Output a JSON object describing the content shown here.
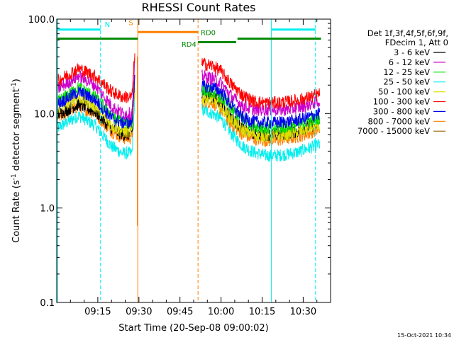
{
  "chart_data": {
    "type": "line",
    "title": "RHESSI Count Rates",
    "xlabel": "Start Time (20-Sep-08 09:00:02)",
    "ylabel_main": "Count Rate (s",
    "ylabel_sup1": "-1",
    "ylabel_mid": " detector segment",
    "ylabel_sup2": "-1",
    "ylabel_end": ")",
    "yscale": "log",
    "ylim": [
      0.1,
      100.0
    ],
    "xlim_minutes": [
      0,
      100
    ],
    "x_ticks": [
      {
        "label": "09:15",
        "t": 15
      },
      {
        "label": "09:30",
        "t": 30
      },
      {
        "label": "09:45",
        "t": 45
      },
      {
        "label": "10:00",
        "t": 60
      },
      {
        "label": "10:15",
        "t": 75
      },
      {
        "label": "10:30",
        "t": 90
      }
    ],
    "y_ticks": [
      {
        "label": "100.0",
        "v": 100
      },
      {
        "label": "10.0",
        "v": 10
      },
      {
        "label": "1.0",
        "v": 1
      },
      {
        "label": "0.1",
        "v": 0.1
      }
    ],
    "legend_header": [
      "Det 1f,3f,4f,5f,6f,9f,",
      "FDecim 1, Att 0"
    ],
    "series": [
      {
        "name": "3 - 6 keV",
        "color": "#000000",
        "segments": [
          {
            "t": [
              0,
              8,
              14,
              20,
              24,
              27.5,
              28.5
            ],
            "v": [
              9.8,
              12.5,
              10.5,
              7.0,
              6.0,
              6.0,
              25.0
            ]
          },
          {
            "t": [
              53,
              57,
              60,
              64,
              68,
              72,
              76,
              80,
              84,
              88,
              92,
              96
            ],
            "v": [
              15.5,
              15.0,
              12.8,
              9.0,
              6.8,
              6.2,
              6.0,
              6.0,
              6.2,
              6.5,
              7.3,
              8.0
            ]
          }
        ]
      },
      {
        "name": "6 - 12 keV",
        "color": "#cc00cc",
        "segments": [
          {
            "t": [
              0,
              8,
              14,
              20,
              24,
              27.5,
              28.5
            ],
            "v": [
              18.0,
              25.0,
              20.0,
              12.0,
              10.0,
              10.0,
              34.0
            ]
          },
          {
            "t": [
              53,
              57,
              60,
              64,
              68,
              72,
              76,
              80,
              84,
              88,
              92,
              96
            ],
            "v": [
              25.0,
              23.5,
              21.0,
              15.0,
              12.0,
              11.0,
              11.0,
              11.0,
              11.0,
              11.5,
              12.5,
              13.5
            ]
          }
        ]
      },
      {
        "name": "12 - 25 keV",
        "color": "#00dd00",
        "segments": [
          {
            "t": [
              0,
              8,
              14,
              20,
              24,
              27.5,
              28.5
            ],
            "v": [
              13.0,
              19.0,
              15.0,
              9.5,
              8.0,
              8.0,
              27.0
            ]
          },
          {
            "t": [
              53,
              57,
              60,
              64,
              68,
              72,
              76,
              80,
              84,
              88,
              92,
              96
            ],
            "v": [
              18.0,
              17.0,
              15.0,
              11.0,
              8.5,
              7.5,
              7.0,
              7.0,
              7.2,
              7.6,
              8.3,
              9.0
            ]
          }
        ]
      },
      {
        "name": "25 - 50 keV",
        "color": "#00eeee",
        "segments": [
          {
            "t": [
              0,
              8,
              14,
              20,
              24,
              27.5,
              28.5
            ],
            "v": [
              7.0,
              9.5,
              7.5,
              4.5,
              3.8,
              3.8,
              15.0
            ]
          },
          {
            "t": [
              53,
              57,
              60,
              64,
              68,
              72,
              76,
              80,
              84,
              88,
              92,
              96
            ],
            "v": [
              11.0,
              10.0,
              8.8,
              6.0,
              4.5,
              3.9,
              3.6,
              3.6,
              3.7,
              3.9,
              4.3,
              4.7
            ]
          }
        ]
      },
      {
        "name": "50 - 100 keV",
        "color": "#dddd00",
        "segments": [
          {
            "t": [
              0,
              8,
              14,
              20,
              24,
              27.5,
              28.5
            ],
            "v": [
              11.0,
              15.0,
              12.0,
              7.5,
              6.5,
              6.5,
              22.0
            ]
          },
          {
            "t": [
              53,
              57,
              60,
              64,
              68,
              72,
              76,
              80,
              84,
              88,
              92,
              96
            ],
            "v": [
              14.5,
              14.0,
              12.0,
              8.5,
              6.6,
              6.0,
              5.8,
              5.8,
              6.0,
              6.3,
              6.9,
              7.5
            ]
          }
        ]
      },
      {
        "name": "100 - 300 keV",
        "color": "#ff0000",
        "segments": [
          {
            "t": [
              0,
              8,
              14,
              20,
              24,
              27.5,
              28.5
            ],
            "v": [
              22.0,
              30.0,
              25.0,
              17.0,
              15.0,
              15.0,
              45.0
            ]
          },
          {
            "t": [
              53,
              57,
              60,
              64,
              68,
              72,
              76,
              80,
              84,
              88,
              92,
              96
            ],
            "v": [
              34.0,
              32.0,
              28.0,
              20.0,
              15.5,
              13.5,
              13.0,
              13.0,
              13.3,
              13.8,
              14.8,
              16.0
            ]
          }
        ]
      },
      {
        "name": "300 - 800 keV",
        "color": "#0000ee",
        "segments": [
          {
            "t": [
              0,
              8,
              14,
              20,
              24,
              27.5,
              28.5
            ],
            "v": [
              12.5,
              17.0,
              14.0,
              9.0,
              8.0,
              8.0,
              26.0
            ]
          },
          {
            "t": [
              53,
              57,
              60,
              64,
              68,
              72,
              76,
              80,
              84,
              88,
              92,
              96
            ],
            "v": [
              19.5,
              19.0,
              17.0,
              12.0,
              9.0,
              8.2,
              8.0,
              8.0,
              8.2,
              8.5,
              9.2,
              10.0
            ]
          }
        ]
      },
      {
        "name": "800 - 7000 keV",
        "color": "#ff8000",
        "segments": [
          {
            "t": [
              0,
              8,
              14,
              20,
              24,
              27.5,
              28.5
            ],
            "v": [
              9.0,
              12.0,
              10.0,
              6.5,
              5.5,
              5.5,
              18.0
            ]
          },
          {
            "t": [
              53,
              57,
              60,
              64,
              68,
              72,
              76,
              80,
              84,
              88,
              92,
              96
            ],
            "v": [
              13.5,
              13.0,
              11.0,
              7.5,
              6.0,
              5.4,
              5.2,
              5.2,
              5.4,
              5.7,
              6.2,
              6.8
            ]
          }
        ]
      },
      {
        "name": "7000 - 15000 keV",
        "color": "#996600",
        "segments": []
      }
    ],
    "markers": [
      {
        "t": 0.3,
        "color": "#00eeee",
        "style": "solid"
      },
      {
        "t": 16,
        "color": "#00eeee",
        "style": "dashed"
      },
      {
        "t": 29.6,
        "color": "#ff8000",
        "style": "solid"
      },
      {
        "t": 51.6,
        "color": "#ff8000",
        "style": "dashed"
      },
      {
        "t": 78.4,
        "color": "#00eeee",
        "style": "solid"
      },
      {
        "t": 94.5,
        "color": "#00eeee",
        "style": "dashed"
      }
    ],
    "flag_bars": [
      {
        "label": "N",
        "color": "#00eeee",
        "v": 77.5,
        "label_v": 83,
        "label_align": "middle",
        "label_t": 18.5,
        "segments": [
          [
            0.3,
            16
          ],
          [
            78.4,
            94.5
          ]
        ]
      },
      {
        "label": "S",
        "color": "#ff8000",
        "v": 73.0,
        "label_v": 86,
        "label_align": "end",
        "label_t": 27.9,
        "segments": [
          [
            29.6,
            51.6
          ]
        ]
      },
      {
        "label": "RD0",
        "color": "#008800",
        "v": 62.0,
        "label_v": 68,
        "label_align": "start",
        "label_t": 52.6,
        "segments": [
          [
            0.3,
            29.6
          ],
          [
            66.0,
            96.5
          ]
        ]
      },
      {
        "label": "RD4",
        "color": "#008800",
        "v": 57.0,
        "label_v": 51,
        "label_align": "end",
        "label_t": 51.0,
        "segments": [
          [
            51.6,
            65.5
          ]
        ]
      }
    ],
    "flare_spike": {
      "t": 29.4,
      "v_min": 0.65,
      "v_max": 40,
      "color": "#ff8000"
    },
    "timestamp": "15-Oct-2021 10:34"
  }
}
